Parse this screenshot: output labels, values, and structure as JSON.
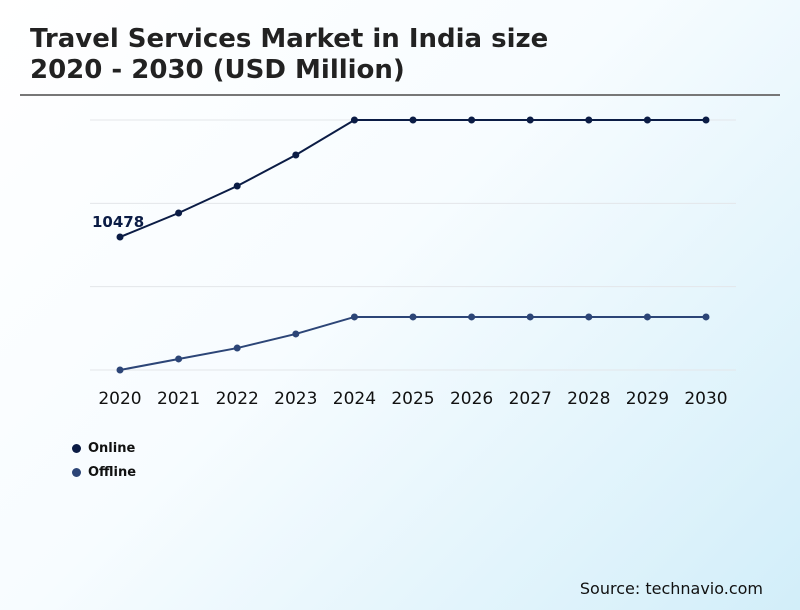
{
  "chart_data": {
    "type": "line",
    "title": "Travel Services Market in India size 2020 - 2030 (USD Million)",
    "title_lines": [
      "Travel Services Market in India size",
      "2020 - 2030 (USD Million)"
    ],
    "categories": [
      "2020",
      "2021",
      "2022",
      "2023",
      "2024",
      "2025",
      "2026",
      "2027",
      "2028",
      "2029",
      "2030"
    ],
    "series": [
      {
        "name": "Online",
        "color": "#0b1c45",
        "values": [
          10478,
          12370,
          14500,
          16940,
          19700,
          19700,
          19700,
          19700,
          19700,
          19700,
          19700
        ]
      },
      {
        "name": "Offline",
        "color": "#2c4577",
        "values": [
          0,
          870,
          1730,
          2840,
          4180,
          4180,
          4180,
          4180,
          4180,
          4180,
          4180
        ]
      }
    ],
    "annotations": [
      {
        "series": "Online",
        "category": "2020",
        "text": "10478"
      }
    ],
    "ylim": [
      0,
      19700
    ],
    "grid": true,
    "y_axis_labels_shown": false,
    "legend_placement": "bottom-left"
  },
  "source": "Source: technavio.com"
}
